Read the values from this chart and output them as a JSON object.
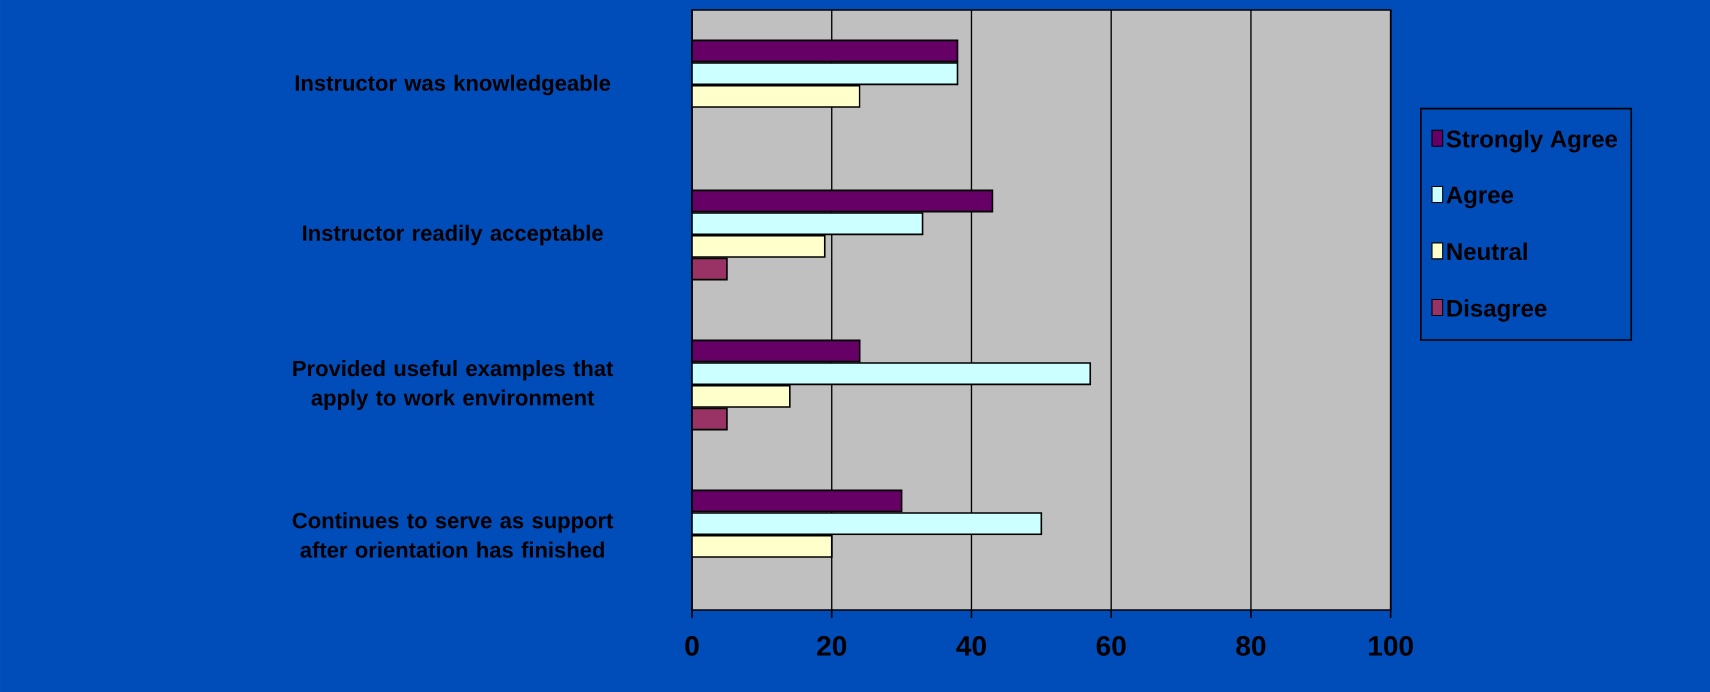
{
  "chart_data": {
    "type": "bar",
    "orientation": "horizontal",
    "categories": [
      "Instructor was knowledgeable",
      "Instructor readily acceptable",
      "Provided useful examples that apply to work environment",
      "Continues to serve as support after orientation has finished"
    ],
    "series": [
      {
        "name": "Strongly Agree",
        "color": "#660066",
        "values": [
          38,
          43,
          24,
          30
        ]
      },
      {
        "name": "Agree",
        "color": "#ccffff",
        "values": [
          38,
          33,
          57,
          50
        ]
      },
      {
        "name": "Neutral",
        "color": "#ffffcc",
        "values": [
          24,
          19,
          14,
          20
        ]
      },
      {
        "name": "Disagree",
        "color": "#993366",
        "values": [
          null,
          5,
          5,
          null
        ]
      }
    ],
    "xlim": [
      0,
      100
    ],
    "xticks": [
      0,
      20,
      40,
      60,
      80,
      100
    ],
    "grid": "x",
    "legend": "right"
  }
}
